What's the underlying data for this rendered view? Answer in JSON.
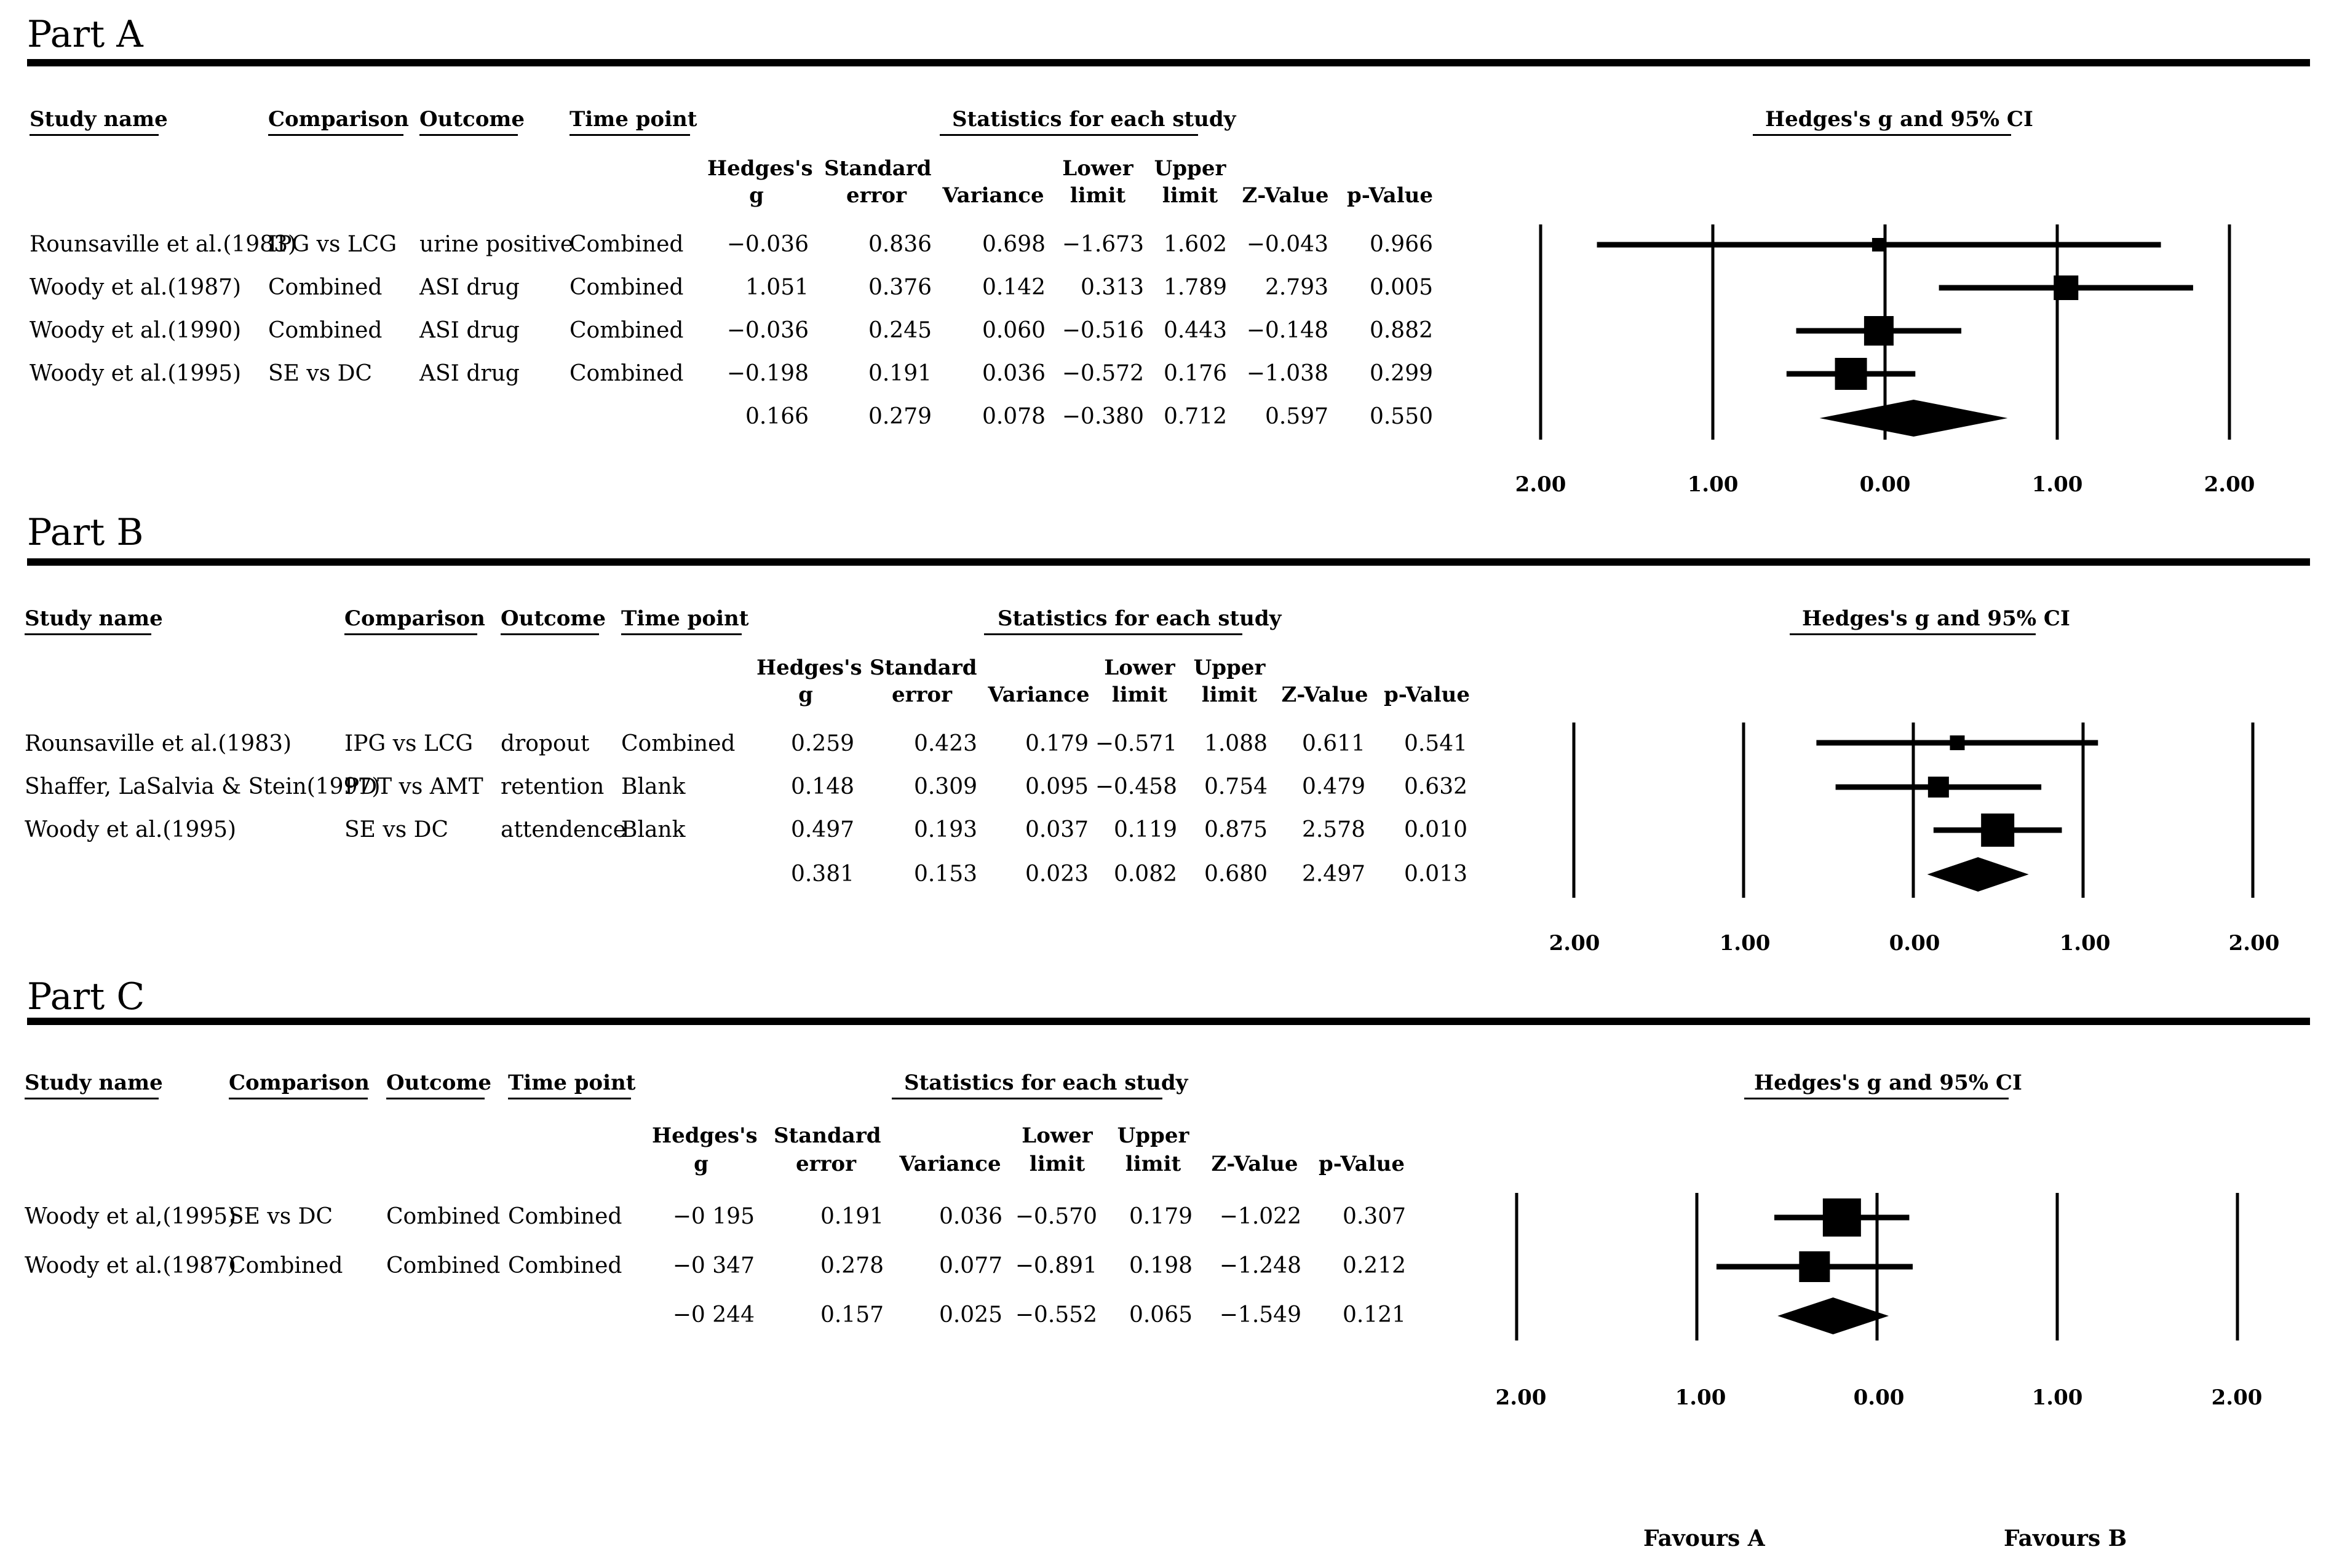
{
  "chart_data": [
    {
      "type": "forest",
      "part": "Part A",
      "columns": {
        "study": "Study name",
        "comparison": "Comparison",
        "outcome": "Outcome",
        "time": "Time point",
        "stats_header": "Statistics for each study",
        "g_line1": "Hedges's",
        "g_line2": "g",
        "se_line1": "Standard",
        "se_line2": "error",
        "var": "Variance",
        "lo_line1": "Lower",
        "lo_line2": "limit",
        "hi_line1": "Upper",
        "hi_line2": "limit",
        "z": "Z-Value",
        "p": "p-Value"
      },
      "plot_title": "Hedges's g and 95% CI",
      "axis_labels": [
        "2.00",
        "1.00",
        "0.00",
        "1.00",
        "2.00"
      ],
      "rows": [
        {
          "study": "Rounsaville et al.(1983)",
          "comparison": "IPG vs LCG",
          "outcome": "urine positive",
          "time": "Combined",
          "g": "−0.036",
          "se": "0.836",
          "var": "0.698",
          "lo": "−1.673",
          "hi": "1.602",
          "z": "−0.043",
          "p": "0.966"
        },
        {
          "study": "Woody et al.(1987)",
          "comparison": "Combined",
          "outcome": "ASI drug",
          "time": "Combined",
          "g": "1.051",
          "se": "0.376",
          "var": "0.142",
          "lo": "0.313",
          "hi": "1.789",
          "z": "2.793",
          "p": "0.005"
        },
        {
          "study": "Woody et al.(1990)",
          "comparison": "Combined",
          "outcome": "ASI drug",
          "time": "Combined",
          "g": "−0.036",
          "se": "0.245",
          "var": "0.060",
          "lo": "−0.516",
          "hi": "0.443",
          "z": "−0.148",
          "p": "0.882"
        },
        {
          "study": "Woody et al.(1995)",
          "comparison": "SE vs DC",
          "outcome": "ASI drug",
          "time": "Combined",
          "g": "−0.198",
          "se": "0.191",
          "var": "0.036",
          "lo": "−0.572",
          "hi": "0.176",
          "z": "−1.038",
          "p": "0.299"
        }
      ],
      "summary": {
        "g": "0.166",
        "se": "0.279",
        "var": "0.078",
        "lo": "−0.380",
        "hi": "0.712",
        "z": "0.597",
        "p": "0.550"
      },
      "points": [
        {
          "g": -0.036,
          "lo": -1.673,
          "hi": 1.602,
          "weight": 0.3
        },
        {
          "g": 1.051,
          "lo": 0.313,
          "hi": 1.789,
          "weight": 0.7
        },
        {
          "g": -0.036,
          "lo": -0.516,
          "hi": 0.443,
          "weight": 0.85
        },
        {
          "g": -0.198,
          "lo": -0.572,
          "hi": 0.176,
          "weight": 0.9
        }
      ],
      "summary_point": {
        "g": 0.166,
        "lo": -0.38,
        "hi": 0.712
      },
      "xlim": [
        -2,
        2
      ]
    },
    {
      "type": "forest",
      "part": "Part B",
      "columns": {
        "study": "Study name",
        "comparison": "Comparison",
        "outcome": "Outcome",
        "time": "Time point",
        "stats_header": "Statistics for each study",
        "g_line1": "Hedges's",
        "g_line2": "g",
        "se_line1": "Standard",
        "se_line2": "error",
        "var": "Variance",
        "lo_line1": "Lower",
        "lo_line2": "limit",
        "hi_line1": "Upper",
        "hi_line2": "limit",
        "z": "Z-Value",
        "p": "p-Value"
      },
      "plot_title": "Hedges's g and 95% CI",
      "axis_labels": [
        "2.00",
        "1.00",
        "0.00",
        "1.00",
        "2.00"
      ],
      "rows": [
        {
          "study": "Rounsaville et al.(1983)",
          "comparison": "IPG vs LCG",
          "outcome": "dropout",
          "time": "Combined",
          "g": "0.259",
          "se": "0.423",
          "var": "0.179",
          "lo": "−0.571",
          "hi": "1.088",
          "z": "0.611",
          "p": "0.541"
        },
        {
          "study": "Shaffer, LaSalvia & Stein(1997)",
          "comparison": "PDT vs AMT",
          "outcome": "retention",
          "time": "Blank",
          "g": "0.148",
          "se": "0.309",
          "var": "0.095",
          "lo": "−0.458",
          "hi": "0.754",
          "z": "0.479",
          "p": "0.632"
        },
        {
          "study": "Woody et al.(1995)",
          "comparison": "SE vs DC",
          "outcome": "attendence",
          "time": "Blank",
          "g": "0.497",
          "se": "0.193",
          "var": "0.037",
          "lo": "0.119",
          "hi": "0.875",
          "z": "2.578",
          "p": "0.010"
        }
      ],
      "summary": {
        "g": "0.381",
        "se": "0.153",
        "var": "0.023",
        "lo": "0.082",
        "hi": "0.680",
        "z": "2.497",
        "p": "0.013"
      },
      "points": [
        {
          "g": 0.259,
          "lo": -0.571,
          "hi": 1.088,
          "weight": 0.35
        },
        {
          "g": 0.148,
          "lo": -0.458,
          "hi": 0.754,
          "weight": 0.5
        },
        {
          "g": 0.497,
          "lo": 0.119,
          "hi": 0.875,
          "weight": 0.9
        }
      ],
      "summary_point": {
        "g": 0.381,
        "lo": 0.082,
        "hi": 0.68
      },
      "xlim": [
        -2,
        2
      ]
    },
    {
      "type": "forest",
      "part": "Part C",
      "columns": {
        "study": "Study name",
        "comparison": "Comparison",
        "outcome": "Outcome",
        "time": "Time point",
        "stats_header": "Statistics for each study",
        "g_line1": "Hedges's",
        "g_line2": "g",
        "se_line1": "Standard",
        "se_line2": "error",
        "var": "Variance",
        "lo_line1": "Lower",
        "lo_line2": "limit",
        "hi_line1": "Upper",
        "hi_line2": "limit",
        "z": "Z-Value",
        "p": "p-Value"
      },
      "plot_title": "Hedges's g and 95% CI",
      "axis_labels": [
        "2.00",
        "1.00",
        "0.00",
        "1.00",
        "2.00"
      ],
      "rows": [
        {
          "study": "Woody et al,(1995)",
          "comparison": "SE vs DC",
          "outcome": "Combined",
          "time": "Combined",
          "g": "−0 195",
          "se": "0.191",
          "var": "0.036",
          "lo": "−0.570",
          "hi": "0.179",
          "z": "−1.022",
          "p": "0.307"
        },
        {
          "study": "Woody et al.(1987)",
          "comparison": "Combined",
          "outcome": "Combined",
          "time": "Combined",
          "g": "−0 347",
          "se": "0.278",
          "var": "0.077",
          "lo": "−0.891",
          "hi": "0.198",
          "z": "−1.248",
          "p": "0.212"
        }
      ],
      "summary": {
        "g": "−0 244",
        "se": "0.157",
        "var": "0.025",
        "lo": "−0.552",
        "hi": "0.065",
        "z": "−1.549",
        "p": "0.121"
      },
      "points": [
        {
          "g": -0.195,
          "lo": -0.57,
          "hi": 0.179,
          "weight": 1.0
        },
        {
          "g": -0.347,
          "lo": -0.891,
          "hi": 0.198,
          "weight": 0.75
        }
      ],
      "summary_point": {
        "g": -0.244,
        "lo": -0.552,
        "hi": 0.065
      },
      "xlim": [
        -2,
        2
      ]
    }
  ],
  "favours": {
    "a": "Favours A",
    "b": "Favours B"
  }
}
